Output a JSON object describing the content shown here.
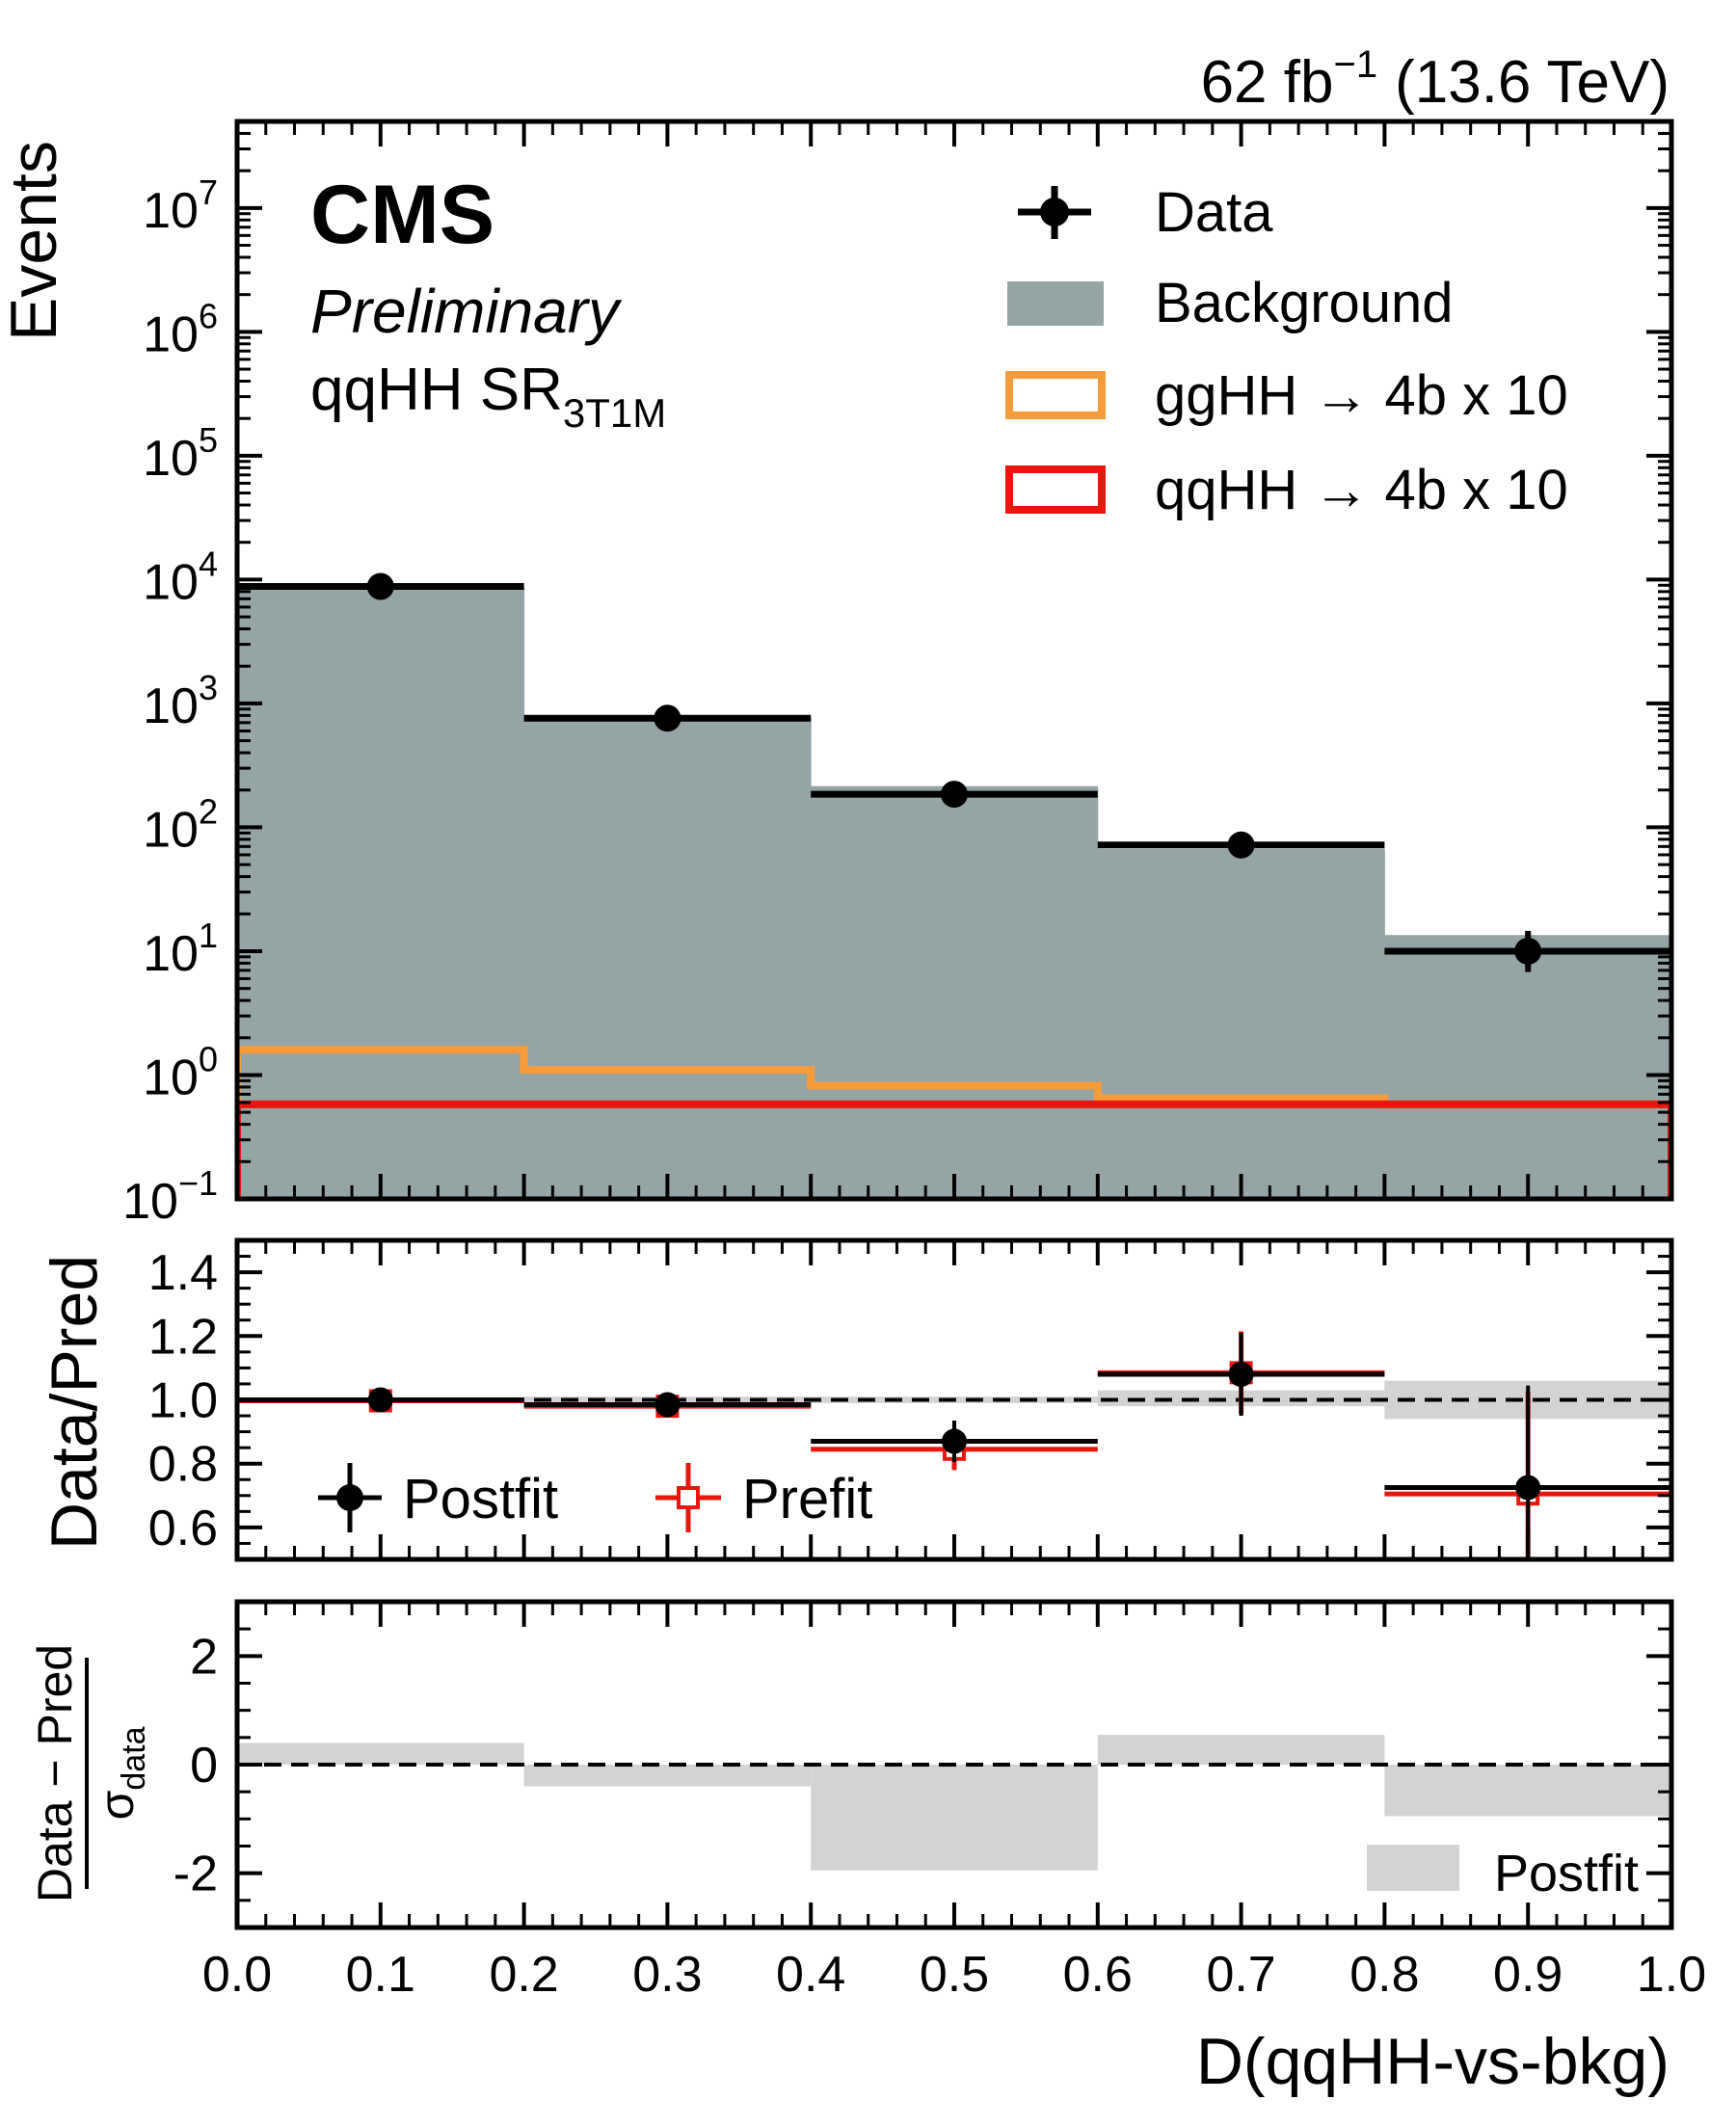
{
  "header": {
    "lumi_base": "62 fb",
    "lumi_exp": "−1",
    "lumi_energy": "(13.6 TeV)"
  },
  "labels": {
    "experiment": "CMS",
    "status": "Preliminary",
    "region_base": "qqHH SR",
    "region_sub": "3T1M",
    "ylabel_top": "Events",
    "ylabel_mid": "Data/Pred",
    "ylabel_bot_num": "Data − Pred",
    "ylabel_bot_den": "σ",
    "ylabel_bot_den_sub": "data",
    "xlabel": "D(qqHH-vs-bkg)"
  },
  "colors": {
    "background": "#95a5a6",
    "gghh": "#f89c3a",
    "qqhh": "#e8160c",
    "data": "#000000",
    "prefit": "#e8160c",
    "band": "#d3d3d3"
  },
  "chart_data": [
    {
      "type": "bar",
      "panel": "main",
      "yscale": "log",
      "ylim": [
        0.1,
        50000000
      ],
      "xlim": [
        0,
        1
      ],
      "bin_edges": [
        0,
        0.2,
        0.4,
        0.6,
        0.8,
        1.0
      ],
      "y_ticks": [
        {
          "base": "10",
          "exp": "−1",
          "value": 0.1
        },
        {
          "base": "10",
          "exp": "0",
          "value": 1
        },
        {
          "base": "10",
          "exp": "1",
          "value": 10
        },
        {
          "base": "10",
          "exp": "2",
          "value": 100
        },
        {
          "base": "10",
          "exp": "3",
          "value": 1000
        },
        {
          "base": "10",
          "exp": "4",
          "value": 10000
        },
        {
          "base": "10",
          "exp": "5",
          "value": 100000
        },
        {
          "base": "10",
          "exp": "6",
          "value": 1000000
        },
        {
          "base": "10",
          "exp": "7",
          "value": 10000000
        }
      ],
      "series": [
        {
          "name": "Data",
          "kind": "points",
          "x": [
            0.1,
            0.3,
            0.5,
            0.7,
            0.9
          ],
          "values": [
            8800,
            760,
            185,
            72,
            10
          ],
          "yerr_low": [
            94,
            28,
            14,
            8.5,
            3.2
          ],
          "yerr_high": [
            94,
            28,
            14,
            8.5,
            4.6
          ]
        },
        {
          "name": "Background",
          "kind": "stack",
          "values": [
            8800,
            760,
            215,
            67,
            13.5
          ]
        },
        {
          "name": "ggHH → 4b x 10",
          "kind": "step",
          "values": [
            1.6,
            1.1,
            0.82,
            0.65,
            0.58
          ]
        },
        {
          "name": "qqHH → 4b x 10",
          "kind": "step",
          "values": [
            0.58,
            0.58,
            0.58,
            0.58,
            0.58
          ]
        }
      ],
      "legend": {
        "position": "top-right",
        "entries": [
          {
            "label": "Data",
            "style": "errorbar"
          },
          {
            "label": "Background",
            "style": "fill"
          },
          {
            "label": "ggHH → 4b x 10",
            "style": "outline-gghh"
          },
          {
            "label": "qqHH → 4b x 10",
            "style": "outline-qqhh"
          }
        ]
      }
    },
    {
      "type": "scatter",
      "panel": "ratio",
      "ylim": [
        0.5,
        1.5
      ],
      "y_ticks": [
        "0.6",
        "0.8",
        "1.0",
        "1.2",
        "1.4"
      ],
      "reference_line": 1.0,
      "band": {
        "low": [
          1.0,
          0.99,
          0.99,
          0.98,
          0.94
        ],
        "high": [
          1.0,
          1.01,
          1.01,
          1.03,
          1.06
        ]
      },
      "series": [
        {
          "name": "Postfit",
          "x": [
            0.1,
            0.3,
            0.5,
            0.7,
            0.9
          ],
          "values": [
            1.0,
            0.985,
            0.87,
            1.08,
            0.725
          ],
          "yerr": [
            0.01,
            0.035,
            0.065,
            0.13,
            0.32
          ]
        },
        {
          "name": "Prefit",
          "x": [
            0.1,
            0.3,
            0.5,
            0.7,
            0.9
          ],
          "values": [
            0.997,
            0.98,
            0.845,
            1.085,
            0.705
          ],
          "yerr": [
            0.01,
            0.035,
            0.065,
            0.13,
            0.32
          ]
        }
      ],
      "legend": {
        "position": "bottom-left",
        "entries": [
          "Postfit",
          "Prefit"
        ]
      }
    },
    {
      "type": "bar",
      "panel": "pull",
      "ylim": [
        -3,
        3
      ],
      "y_ticks": [
        "-2",
        "0",
        "2"
      ],
      "reference_line": 0,
      "x_ticks": [
        "0.0",
        "0.1",
        "0.2",
        "0.3",
        "0.4",
        "0.5",
        "0.6",
        "0.7",
        "0.8",
        "0.9",
        "1.0"
      ],
      "series": [
        {
          "name": "Postfit",
          "values": [
            0.4,
            -0.4,
            -1.95,
            0.55,
            -0.95
          ]
        }
      ],
      "legend": {
        "position": "bottom-right",
        "entries": [
          "Postfit"
        ]
      }
    }
  ]
}
